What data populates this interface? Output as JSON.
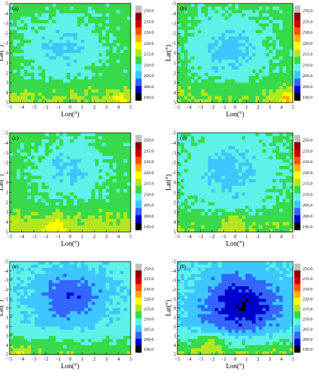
{
  "chart_data": [
    {
      "type": "heatmap",
      "panel_label": "(a)",
      "xlabel": "Lon(°)",
      "ylabel": "Lat(°)",
      "x_ticks": [
        -5,
        -4,
        -3,
        -2,
        -1,
        0,
        1,
        2,
        3,
        4,
        5
      ],
      "y_ticks": [
        -5,
        -4,
        -3,
        -2,
        -1,
        0,
        1,
        2,
        3,
        4,
        5
      ],
      "xlim": [
        -5,
        5
      ],
      "ylim": [
        5,
        -5
      ],
      "colorbar_ticks": [
        "190.0",
        "200.0",
        "205.0",
        "210.0",
        "215.0",
        "220.0",
        "230.0",
        "235.0",
        "250.0"
      ],
      "field": {
        "base": 217,
        "center_x": -0.5,
        "center_y": -0.5,
        "core_depth": 8,
        "core_radius": 3.0,
        "south_warm": 4,
        "warm_spot_x": 4.3,
        "warm_spot_y": 4.7,
        "warm_spot_amp": 6
      }
    },
    {
      "type": "heatmap",
      "panel_label": "(b)",
      "xlabel": "Lon(°)",
      "ylabel": "Lat(°)",
      "x_ticks": [
        -5,
        -4,
        -3,
        -2,
        -1,
        0,
        1,
        2,
        3,
        4,
        5
      ],
      "y_ticks": [
        -5,
        -4,
        -3,
        -2,
        -1,
        0,
        1,
        2,
        3,
        4,
        5
      ],
      "xlim": [
        -5,
        5
      ],
      "ylim": [
        5,
        -5
      ],
      "colorbar_ticks": [
        "190.0",
        "200.0",
        "205.0",
        "210.0",
        "215.0",
        "220.0",
        "230.0",
        "235.0",
        "250.0"
      ],
      "field": {
        "base": 217,
        "center_x": -0.5,
        "center_y": -0.3,
        "core_depth": 9,
        "core_radius": 3.2,
        "south_warm": 4,
        "warm_spot_x": 4.6,
        "warm_spot_y": 4.7,
        "warm_spot_amp": 10
      }
    },
    {
      "type": "heatmap",
      "panel_label": "(c)",
      "xlabel": "Lon(°)",
      "ylabel": "Lat(°)",
      "x_ticks": [
        -5,
        -4,
        -3,
        -2,
        -1,
        0,
        1,
        2,
        3,
        4,
        5
      ],
      "y_ticks": [
        -5,
        -4,
        -3,
        -2,
        -1,
        0,
        1,
        2,
        3,
        4,
        5
      ],
      "xlim": [
        -5,
        5
      ],
      "ylim": [
        5,
        -5
      ],
      "colorbar_ticks": [
        "190.0",
        "200.0",
        "205.0",
        "210.0",
        "215.0",
        "220.0",
        "230.0",
        "235.0",
        "250.0"
      ],
      "field": {
        "base": 217,
        "center_x": 0.0,
        "center_y": -1.3,
        "core_depth": 8,
        "core_radius": 2.6,
        "south_warm": 6,
        "warm_spot_x": -1.0,
        "warm_spot_y": 4.6,
        "warm_spot_amp": 6
      }
    },
    {
      "type": "heatmap",
      "panel_label": "(d)",
      "xlabel": "Lon(°)",
      "ylabel": "Lat(°)",
      "x_ticks": [
        -5,
        -4,
        -3,
        -2,
        -1,
        0,
        1,
        2,
        3,
        4,
        5
      ],
      "y_ticks": [
        -5,
        -4,
        -3,
        -2,
        -1,
        0,
        1,
        2,
        3,
        4,
        5
      ],
      "xlim": [
        -5,
        5
      ],
      "ylim": [
        5,
        -5
      ],
      "colorbar_ticks": [
        "190.0",
        "200.0",
        "205.0",
        "210.0",
        "215.0",
        "220.0",
        "230.0",
        "235.0",
        "250.0"
      ],
      "field": {
        "base": 216,
        "center_x": -0.5,
        "center_y": -1.0,
        "core_depth": 8,
        "core_radius": 3.4,
        "south_warm": 4,
        "warm_spot_x": 0.0,
        "warm_spot_y": 4.0,
        "warm_spot_amp": 5
      }
    },
    {
      "type": "heatmap",
      "panel_label": "(e)",
      "xlabel": "Lon(°)",
      "ylabel": "Lat(°)",
      "x_ticks": [
        -5,
        -4,
        -3,
        -2,
        -1,
        0,
        1,
        2,
        3,
        4,
        5
      ],
      "y_ticks": [
        -5,
        -4,
        -3,
        -2,
        -1,
        0,
        1,
        2,
        3,
        4,
        5
      ],
      "xlim": [
        -5,
        5
      ],
      "ylim": [
        5,
        -5
      ],
      "colorbar_ticks": [
        "190.0",
        "200.0",
        "205.0",
        "210.0",
        "215.0",
        "220.0",
        "230.0",
        "235.0",
        "250.0"
      ],
      "field": {
        "base": 212,
        "center_x": 0.0,
        "center_y": -1.2,
        "core_depth": 11,
        "core_radius": 3.0,
        "south_warm": 7,
        "warm_spot_x": -4.0,
        "warm_spot_y": 4.8,
        "warm_spot_amp": 6
      }
    },
    {
      "type": "heatmap",
      "panel_label": "(f)",
      "xlabel": "Lon(°)",
      "ylabel": "Lat(°)",
      "x_ticks": [
        -5,
        -4,
        -3,
        -2,
        -1,
        0,
        1,
        2,
        3,
        4,
        5
      ],
      "y_ticks": [
        -5,
        -4,
        -3,
        -2,
        -1,
        0,
        1,
        2,
        3,
        4,
        5
      ],
      "xlim": [
        -5,
        5
      ],
      "ylim": [
        5,
        -5
      ],
      "colorbar_ticks": [
        "190.0",
        "200.0",
        "205.0",
        "210.0",
        "215.0",
        "220.0",
        "230.0",
        "235.0",
        "250.0"
      ],
      "field": {
        "base": 211,
        "center_x": 0.5,
        "center_y": -0.3,
        "core_depth": 15,
        "core_radius": 3.4,
        "south_warm": 10,
        "warm_spot_x": -2.0,
        "warm_spot_y": 3.8,
        "warm_spot_amp": 8
      }
    }
  ],
  "color_levels": [
    {
      "min": 0,
      "color": "#000000"
    },
    {
      "min": 195,
      "color": "#0000cc"
    },
    {
      "min": 200,
      "color": "#3366ff"
    },
    {
      "min": 205,
      "color": "#3cc8ff"
    },
    {
      "min": 210,
      "color": "#5cf2e8"
    },
    {
      "min": 215,
      "color": "#38d94a"
    },
    {
      "min": 220,
      "color": "#b5e61d"
    },
    {
      "min": 225,
      "color": "#ffff00"
    },
    {
      "min": 230,
      "color": "#ffb000"
    },
    {
      "min": 235,
      "color": "#ff5000"
    },
    {
      "min": 240,
      "color": "#cc0000"
    },
    {
      "min": 245,
      "color": "#8b0000"
    },
    {
      "min": 250,
      "color": "#c0c0c0"
    }
  ]
}
